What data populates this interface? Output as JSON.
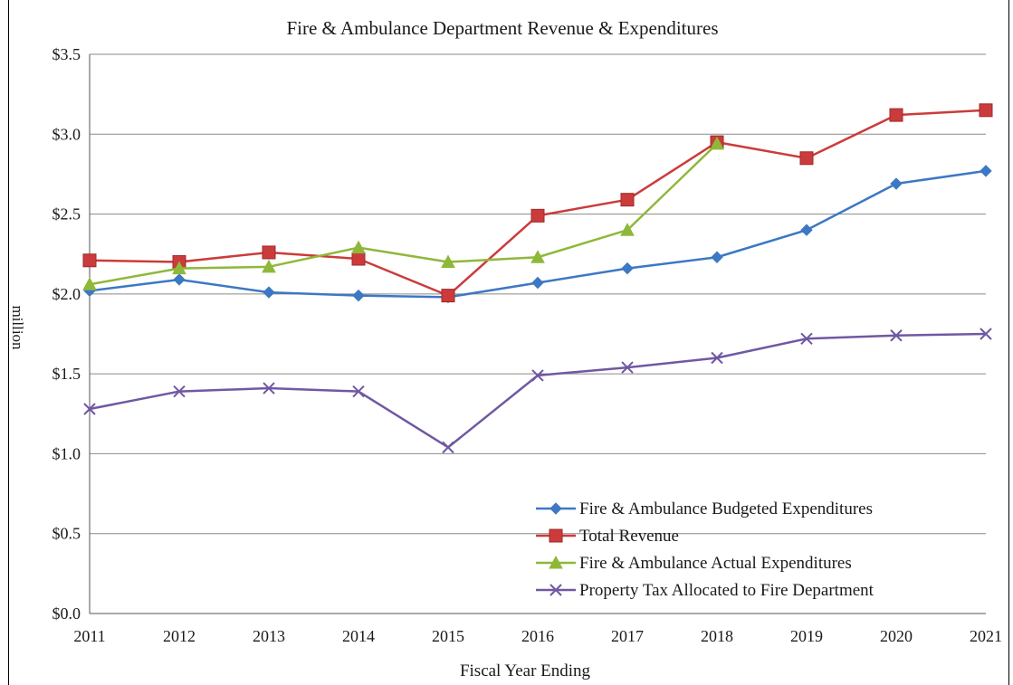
{
  "chart_data": {
    "type": "line",
    "title": "Fire & Ambulance Department Revenue & Expenditures",
    "xlabel": "Fiscal Year Ending",
    "ylabel": "million",
    "ylim": [
      0,
      3.5
    ],
    "yticks": [
      "$0.0",
      "$0.5",
      "$1.0",
      "$1.5",
      "$2.0",
      "$2.5",
      "$3.0",
      "$3.5"
    ],
    "categories": [
      "2011",
      "2012",
      "2013",
      "2014",
      "2015",
      "2016",
      "2017",
      "2018",
      "2019",
      "2020",
      "2021"
    ],
    "grid": "horizontal",
    "legend_position": "bottom-right",
    "series": [
      {
        "name": "Fire & Ambulance Budgeted Expenditures",
        "color": "#3c78c3",
        "marker": "diamond",
        "values": [
          2.02,
          2.09,
          2.01,
          1.99,
          1.98,
          2.07,
          2.16,
          2.23,
          2.4,
          2.69,
          2.77
        ]
      },
      {
        "name": "Total Revenue",
        "color": "#cc3b3b",
        "marker": "square",
        "values": [
          2.21,
          2.2,
          2.26,
          2.22,
          1.99,
          2.49,
          2.59,
          2.95,
          2.85,
          3.12,
          3.15
        ]
      },
      {
        "name": "Fire & Ambulance Actual Expenditures",
        "color": "#8fb83a",
        "marker": "triangle",
        "values": [
          2.06,
          2.16,
          2.17,
          2.29,
          2.2,
          2.23,
          2.4,
          2.94,
          null,
          null,
          null
        ]
      },
      {
        "name": "Property Tax Allocated to Fire Department",
        "color": "#7058a3",
        "marker": "x",
        "values": [
          1.28,
          1.39,
          1.41,
          1.39,
          1.04,
          1.49,
          1.54,
          1.6,
          1.72,
          1.74,
          1.75
        ]
      }
    ]
  }
}
